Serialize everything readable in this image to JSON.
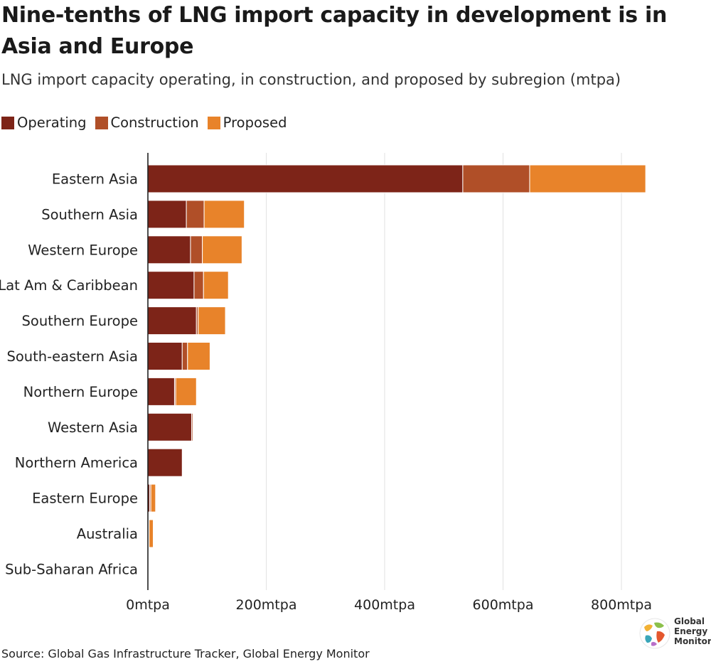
{
  "title": "Nine-tenths of LNG import capacity in development is in Asia and Europe",
  "subtitle": "LNG import capacity operating, in construction, and proposed by subregion (mtpa)",
  "legend": [
    {
      "label": "Operating",
      "color": "#7d2418"
    },
    {
      "label": "Construction",
      "color": "#b04f28"
    },
    {
      "label": "Proposed",
      "color": "#e8832a"
    }
  ],
  "source": "Source: Global Gas Infrastructure Tracker, Global Energy Monitor",
  "logo": {
    "line1": "Global",
    "line2": "Energy",
    "line3": "Monitor"
  },
  "chart_data": {
    "type": "bar",
    "orientation": "horizontal",
    "stacked": true,
    "categories": [
      "Eastern Asia",
      "Southern Asia",
      "Western Europe",
      "Lat Am & Caribbean",
      "Southern Europe",
      "South-eastern Asia",
      "Northern Europe",
      "Western Asia",
      "Northern America",
      "Eastern Europe",
      "Australia",
      "Sub-Saharan Africa"
    ],
    "series": [
      {
        "name": "Operating",
        "color": "#7d2418",
        "values": [
          532,
          65,
          72,
          78,
          82,
          58,
          45,
          74,
          58,
          3,
          1,
          0.5
        ]
      },
      {
        "name": "Construction",
        "color": "#b04f28",
        "values": [
          113,
          30,
          20,
          16,
          3,
          9,
          2,
          2,
          0,
          2,
          1,
          1
        ]
      },
      {
        "name": "Proposed",
        "color": "#e8832a",
        "values": [
          196,
          68,
          67,
          42,
          46,
          38,
          35,
          0,
          0,
          8,
          7,
          1
        ]
      }
    ],
    "xlim": [
      0,
      930
    ],
    "xticks": [
      0,
      200,
      400,
      600,
      800
    ],
    "xtick_labels": [
      "0mtpa",
      "200mtpa",
      "400mtpa",
      "600mtpa",
      "800mtpa"
    ],
    "grid": "vertical",
    "legend_position": "top-left"
  }
}
